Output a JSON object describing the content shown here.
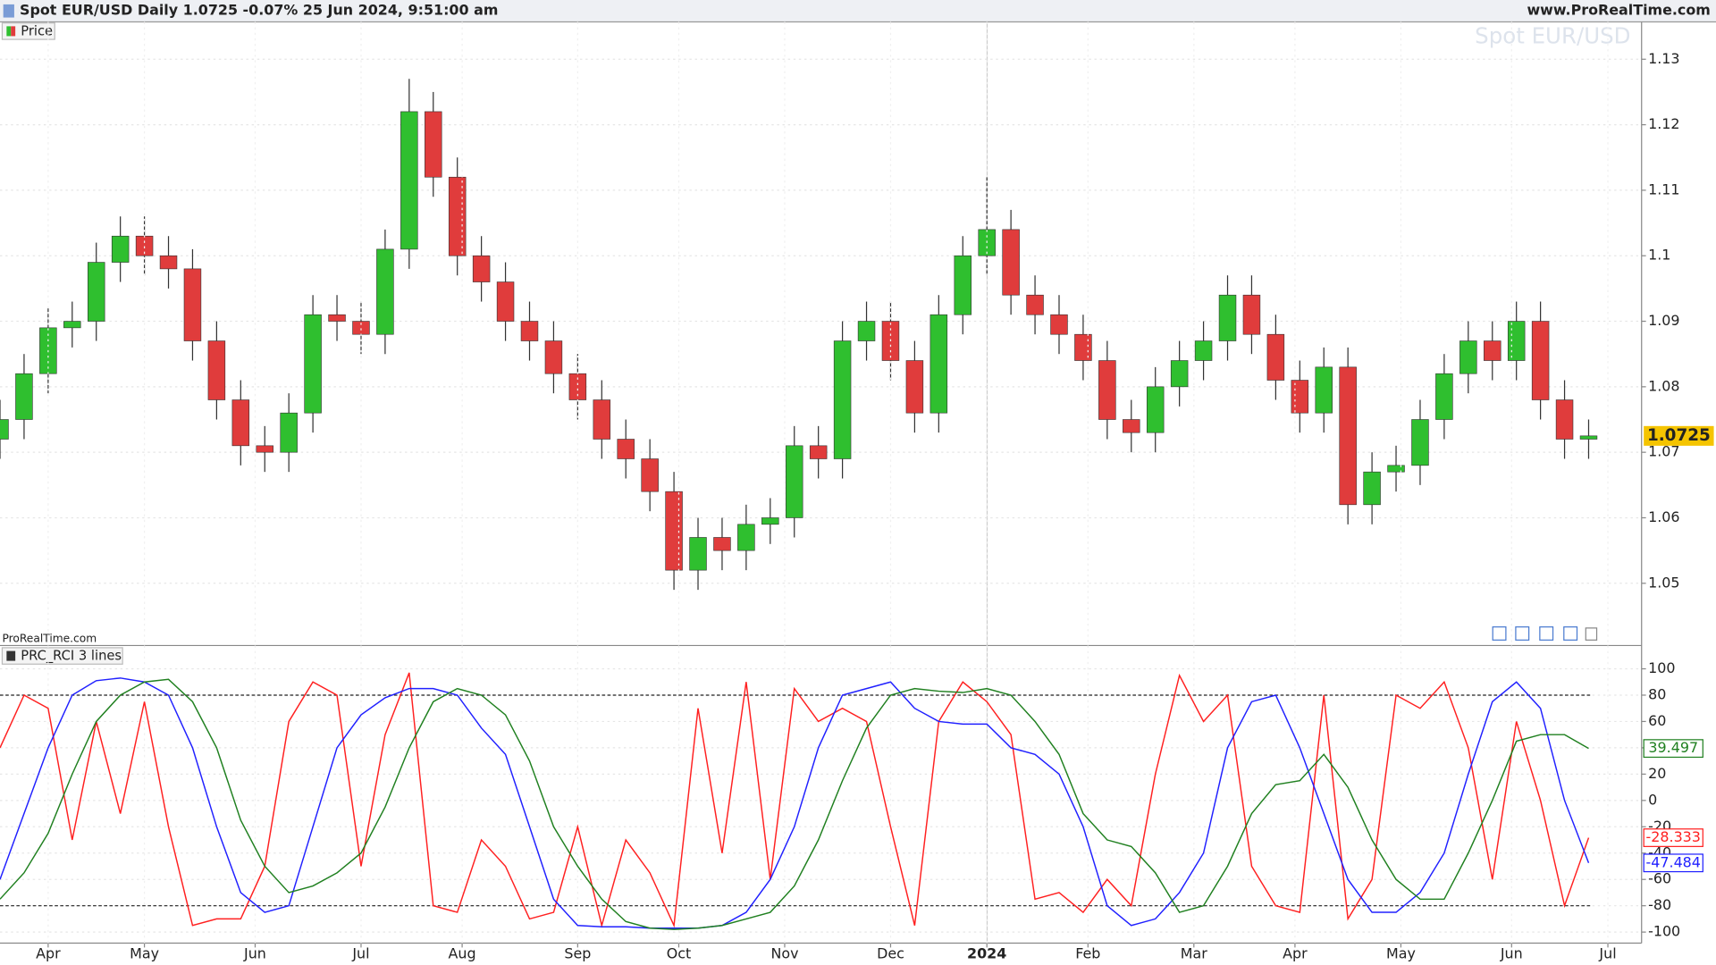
{
  "header": {
    "title": "Spot EUR/USD Daily 1.0725 -0.07% 25 Jun 2024, 9:51:00 am",
    "site": "www.ProRealTime.com",
    "watermark": "Spot EUR/USD",
    "credit": "ProRealTime.com"
  },
  "chart_data": [
    {
      "type": "candlestick",
      "legend": "Price",
      "up_color": "#2fbf2f",
      "down_color": "#e03c3c",
      "grid": true,
      "x": [
        0,
        5,
        10,
        15,
        20,
        25,
        30,
        35,
        40,
        45,
        50,
        55,
        60,
        65,
        70,
        75,
        80,
        85,
        90,
        95,
        100,
        105,
        110,
        115,
        120,
        125,
        130,
        135,
        140,
        145,
        150,
        155,
        160,
        165,
        170,
        175,
        180,
        185,
        190,
        195,
        200,
        205,
        210,
        215,
        220,
        225,
        230,
        235,
        240,
        245,
        250,
        255,
        260,
        265,
        270,
        275,
        280,
        285,
        290,
        295,
        300,
        305,
        310,
        315,
        320,
        325,
        330
      ],
      "open": [
        1.072,
        1.075,
        1.082,
        1.089,
        1.09,
        1.099,
        1.103,
        1.1,
        1.098,
        1.087,
        1.078,
        1.071,
        1.07,
        1.076,
        1.091,
        1.09,
        1.088,
        1.101,
        1.122,
        1.112,
        1.1,
        1.096,
        1.09,
        1.087,
        1.082,
        1.078,
        1.072,
        1.069,
        1.064,
        1.052,
        1.057,
        1.055,
        1.059,
        1.06,
        1.071,
        1.069,
        1.087,
        1.09,
        1.084,
        1.076,
        1.091,
        1.1,
        1.104,
        1.094,
        1.091,
        1.088,
        1.084,
        1.075,
        1.073,
        1.08,
        1.084,
        1.087,
        1.094,
        1.088,
        1.081,
        1.076,
        1.083,
        1.062,
        1.067,
        1.068,
        1.075,
        1.082,
        1.087,
        1.084,
        1.09,
        1.078,
        1.072
      ],
      "high": [
        1.078,
        1.085,
        1.092,
        1.093,
        1.102,
        1.106,
        1.106,
        1.103,
        1.101,
        1.09,
        1.081,
        1.074,
        1.079,
        1.094,
        1.094,
        1.093,
        1.104,
        1.127,
        1.125,
        1.115,
        1.103,
        1.099,
        1.093,
        1.09,
        1.085,
        1.081,
        1.075,
        1.072,
        1.067,
        1.06,
        1.06,
        1.062,
        1.063,
        1.074,
        1.074,
        1.09,
        1.093,
        1.093,
        1.087,
        1.094,
        1.103,
        1.112,
        1.107,
        1.097,
        1.094,
        1.091,
        1.087,
        1.078,
        1.083,
        1.087,
        1.09,
        1.097,
        1.097,
        1.091,
        1.084,
        1.086,
        1.086,
        1.07,
        1.071,
        1.078,
        1.085,
        1.09,
        1.09,
        1.093,
        1.093,
        1.081,
        1.075
      ],
      "low": [
        1.069,
        1.072,
        1.079,
        1.086,
        1.087,
        1.096,
        1.097,
        1.095,
        1.084,
        1.075,
        1.068,
        1.067,
        1.067,
        1.073,
        1.087,
        1.085,
        1.085,
        1.098,
        1.109,
        1.097,
        1.093,
        1.087,
        1.084,
        1.079,
        1.075,
        1.069,
        1.066,
        1.061,
        1.049,
        1.049,
        1.052,
        1.052,
        1.056,
        1.057,
        1.066,
        1.066,
        1.084,
        1.081,
        1.073,
        1.073,
        1.088,
        1.097,
        1.091,
        1.088,
        1.085,
        1.081,
        1.072,
        1.07,
        1.07,
        1.077,
        1.081,
        1.084,
        1.085,
        1.078,
        1.073,
        1.073,
        1.059,
        1.059,
        1.064,
        1.065,
        1.072,
        1.079,
        1.081,
        1.081,
        1.075,
        1.069,
        1.069
      ],
      "close": [
        1.075,
        1.082,
        1.089,
        1.09,
        1.099,
        1.103,
        1.1,
        1.098,
        1.087,
        1.078,
        1.071,
        1.07,
        1.076,
        1.091,
        1.09,
        1.088,
        1.101,
        1.122,
        1.112,
        1.1,
        1.096,
        1.09,
        1.087,
        1.082,
        1.078,
        1.072,
        1.069,
        1.064,
        1.052,
        1.057,
        1.055,
        1.059,
        1.06,
        1.071,
        1.069,
        1.087,
        1.09,
        1.084,
        1.076,
        1.091,
        1.1,
        1.104,
        1.094,
        1.091,
        1.088,
        1.084,
        1.075,
        1.073,
        1.08,
        1.084,
        1.087,
        1.094,
        1.088,
        1.081,
        1.076,
        1.083,
        1.062,
        1.067,
        1.068,
        1.075,
        1.082,
        1.087,
        1.084,
        1.09,
        1.078,
        1.072,
        1.0725
      ],
      "xlim": [
        0,
        341
      ],
      "ylim": [
        1.0405,
        1.1357
      ],
      "yticks": [
        1.05,
        1.06,
        1.07,
        1.08,
        1.09,
        1.1,
        1.11,
        1.12,
        1.13
      ]
    },
    {
      "type": "line",
      "legend": "PRC_RCI 3 lines",
      "grid": true,
      "x": [
        0,
        5,
        10,
        15,
        20,
        25,
        30,
        35,
        40,
        45,
        50,
        55,
        60,
        65,
        70,
        75,
        80,
        85,
        90,
        95,
        100,
        105,
        110,
        115,
        120,
        125,
        130,
        135,
        140,
        145,
        150,
        155,
        160,
        165,
        170,
        175,
        180,
        185,
        190,
        195,
        200,
        205,
        210,
        215,
        220,
        225,
        230,
        235,
        240,
        245,
        250,
        255,
        260,
        265,
        270,
        275,
        280,
        285,
        290,
        295,
        300,
        305,
        310,
        315,
        320,
        325,
        330
      ],
      "series": [
        {
          "color": "#ff2020",
          "values": [
            40,
            80,
            70,
            -30,
            60,
            -10,
            75,
            -20,
            -95,
            -90,
            -90,
            -50,
            60,
            90,
            80,
            -50,
            50,
            97,
            -80,
            -85,
            -30,
            -50,
            -90,
            -85,
            -20,
            -95,
            -30,
            -55,
            -95,
            70,
            -40,
            90,
            -60,
            85,
            60,
            70,
            60,
            -20,
            -95,
            60,
            90,
            75,
            50,
            -75,
            -70,
            -85,
            -60,
            -80,
            20,
            95,
            60,
            80,
            -50,
            -80,
            -85,
            80,
            -90,
            -60,
            80,
            70,
            90,
            40,
            -60,
            60,
            0,
            -80,
            -28.333
          ]
        },
        {
          "color": "#2020ff",
          "values": [
            -60,
            -10,
            40,
            80,
            91,
            93,
            90,
            80,
            40,
            -20,
            -70,
            -85,
            -80,
            -20,
            40,
            65,
            78,
            85,
            85,
            80,
            55,
            35,
            -20,
            -75,
            -95,
            -96,
            -96,
            -97,
            -97,
            -97,
            -95,
            -85,
            -60,
            -20,
            40,
            80,
            85,
            90,
            70,
            60,
            58,
            58,
            40,
            35,
            20,
            -20,
            -80,
            -95,
            -90,
            -70,
            -40,
            40,
            75,
            80,
            40,
            -10,
            -60,
            -85,
            -85,
            -70,
            -40,
            20,
            75,
            90,
            70,
            0,
            -47.484
          ]
        },
        {
          "color": "#208020",
          "values": [
            -75,
            -55,
            -25,
            20,
            60,
            80,
            90,
            92,
            75,
            40,
            -15,
            -50,
            -70,
            -65,
            -55,
            -40,
            -5,
            40,
            75,
            85,
            80,
            65,
            30,
            -20,
            -50,
            -75,
            -92,
            -97,
            -98,
            -97,
            -95,
            -90,
            -85,
            -65,
            -30,
            15,
            55,
            80,
            85,
            83,
            82,
            85,
            80,
            60,
            35,
            -10,
            -30,
            -35,
            -55,
            -85,
            -80,
            -50,
            -10,
            12,
            15,
            35,
            10,
            -30,
            -60,
            -75,
            -75,
            -40,
            0,
            45,
            50,
            50,
            39.497
          ]
        }
      ],
      "dashed_levels": [
        80,
        -80
      ],
      "xlim": [
        0,
        341
      ],
      "ylim": [
        -108.4,
        117.7
      ],
      "yticks": [
        100,
        80,
        60,
        40,
        20,
        0,
        -20,
        -40,
        -60,
        -80,
        -100
      ],
      "xticks": [
        {
          "value": 10,
          "label": "Apr"
        },
        {
          "value": 30,
          "label": "May"
        },
        {
          "value": 53,
          "label": "Jun"
        },
        {
          "value": 75,
          "label": "Jul"
        },
        {
          "value": 96,
          "label": "Aug"
        },
        {
          "value": 120,
          "label": "Sep"
        },
        {
          "value": 141,
          "label": "Oct"
        },
        {
          "value": 163,
          "label": "Nov"
        },
        {
          "value": 185,
          "label": "Dec"
        },
        {
          "value": 205,
          "label": "2024"
        },
        {
          "value": 226,
          "label": "Feb"
        },
        {
          "value": 248,
          "label": "Mar"
        },
        {
          "value": 269,
          "label": "Apr"
        },
        {
          "value": 291,
          "label": "May"
        },
        {
          "value": 314,
          "label": "Jun"
        },
        {
          "value": 334,
          "label": "Jul"
        }
      ]
    }
  ]
}
